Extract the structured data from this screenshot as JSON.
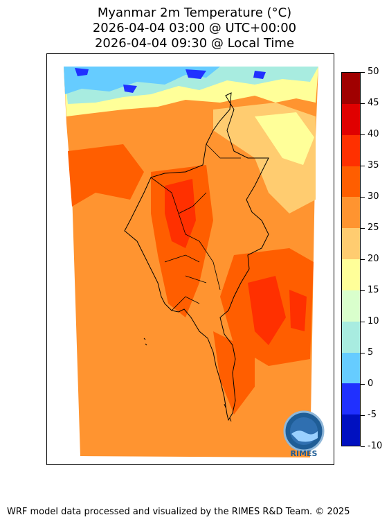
{
  "header": {
    "title_line1": "Myanmar 2m Temperature (°C)",
    "title_line2": "2026-04-04 03:00 @ UTC+00:00",
    "title_line3": "2026-04-04 09:30 @ Local Time"
  },
  "colorbar": {
    "levels": [
      "50",
      "45",
      "40",
      "35",
      "30",
      "25",
      "20",
      "15",
      "10",
      "5",
      "0",
      "-5",
      "-10"
    ],
    "colors": [
      "#a00000",
      "#e00000",
      "#ff3000",
      "#ff5e00",
      "#ff9430",
      "#ffcc70",
      "#ffff99",
      "#d9ffcc",
      "#a8ece0",
      "#66ccff",
      "#2030ff",
      "#0010c0"
    ]
  },
  "logo": {
    "text": "RIMES"
  },
  "footer": {
    "credit": "WRF model data processed and visualized by the RIMES R&D Team. © 2025"
  }
}
